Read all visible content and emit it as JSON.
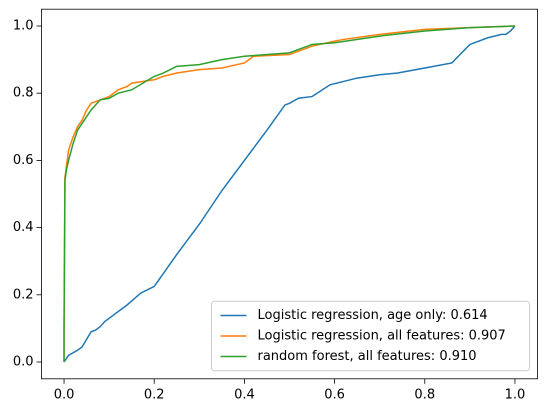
{
  "chart_data": {
    "type": "line",
    "xlim": [
      -0.05,
      1.05
    ],
    "ylim": [
      -0.05,
      1.05
    ],
    "xticks": [
      {
        "value": 0,
        "label": "0.0"
      },
      0.2,
      0.4,
      0.6,
      0.8,
      {
        "value": 1,
        "label": "1.0"
      }
    ],
    "yticks": [
      {
        "value": 0,
        "label": "0.0"
      },
      0.2,
      0.4,
      0.6,
      0.8,
      {
        "value": 1,
        "label": "1.0"
      }
    ],
    "legend": "lower right",
    "series": [
      {
        "name": "Logistic regression, age only: 0.614",
        "color": "#1f77b4",
        "x": [
          0,
          0.01,
          0.03,
          0.04,
          0.06,
          0.07,
          0.08,
          0.09,
          0.11,
          0.14,
          0.17,
          0.2,
          0.25,
          0.3,
          0.35,
          0.4,
          0.45,
          0.49,
          0.5,
          0.52,
          0.55,
          0.59,
          0.65,
          0.7,
          0.74,
          0.8,
          0.86,
          0.9,
          0.94,
          0.97,
          0.98,
          0.99,
          1
        ],
        "values": [
          0,
          0.02,
          0.035,
          0.045,
          0.09,
          0.095,
          0.105,
          0.12,
          0.14,
          0.17,
          0.205,
          0.225,
          0.32,
          0.41,
          0.51,
          0.6,
          0.69,
          0.765,
          0.77,
          0.785,
          0.79,
          0.825,
          0.845,
          0.855,
          0.86,
          0.875,
          0.89,
          0.945,
          0.965,
          0.975,
          0.975,
          0.985,
          1
        ]
      },
      {
        "name": "Logistic regression, all features: 0.907",
        "color": "#ff7f0e",
        "x": [
          0,
          0,
          0.002,
          0.005,
          0.01,
          0.015,
          0.02,
          0.03,
          0.04,
          0.05,
          0.06,
          0.08,
          0.1,
          0.12,
          0.14,
          0.15,
          0.2,
          0.22,
          0.25,
          0.3,
          0.35,
          0.4,
          0.42,
          0.5,
          0.55,
          0.6,
          0.62,
          0.7,
          0.8,
          0.9,
          1
        ],
        "values": [
          0,
          0.1,
          0.55,
          0.58,
          0.63,
          0.65,
          0.67,
          0.7,
          0.72,
          0.75,
          0.77,
          0.78,
          0.79,
          0.81,
          0.82,
          0.83,
          0.84,
          0.85,
          0.86,
          0.87,
          0.875,
          0.89,
          0.91,
          0.915,
          0.94,
          0.955,
          0.96,
          0.975,
          0.99,
          0.995,
          1
        ]
      },
      {
        "name": "random forest, all features: 0.910",
        "color": "#2ca02c",
        "x": [
          0,
          0,
          0.002,
          0.005,
          0.01,
          0.02,
          0.03,
          0.05,
          0.06,
          0.08,
          0.1,
          0.12,
          0.15,
          0.2,
          0.22,
          0.25,
          0.3,
          0.35,
          0.4,
          0.5,
          0.55,
          0.6,
          0.7,
          0.8,
          0.9,
          1
        ],
        "values": [
          0,
          0.1,
          0.54,
          0.57,
          0.6,
          0.65,
          0.69,
          0.73,
          0.75,
          0.78,
          0.785,
          0.8,
          0.81,
          0.85,
          0.86,
          0.88,
          0.885,
          0.9,
          0.91,
          0.92,
          0.945,
          0.95,
          0.97,
          0.985,
          0.995,
          1
        ]
      }
    ]
  }
}
